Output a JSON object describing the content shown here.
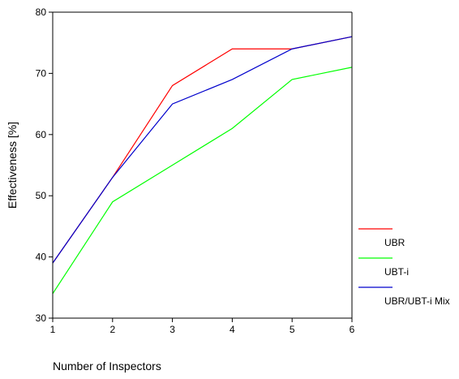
{
  "chart_data": {
    "type": "line",
    "title": "",
    "xlabel": "Number of Inspectors",
    "ylabel": "Effectiveness [%]",
    "x": [
      1,
      2,
      3,
      4,
      5,
      6
    ],
    "xlim": [
      1,
      6
    ],
    "ylim": [
      30,
      80
    ],
    "yticks": [
      30,
      40,
      50,
      60,
      70,
      80
    ],
    "grid": false,
    "legend_position": "right",
    "series": [
      {
        "name": "UBR",
        "color": "#ff0000",
        "values": [
          39,
          53,
          68,
          74,
          74,
          76
        ]
      },
      {
        "name": "UBT-i",
        "color": "#00ff00",
        "values": [
          34,
          49,
          55,
          61,
          69,
          71
        ]
      },
      {
        "name": "UBR/UBT-i Mix",
        "color": "#0000cc",
        "values": [
          39,
          53,
          65,
          69,
          74,
          76
        ]
      }
    ]
  }
}
